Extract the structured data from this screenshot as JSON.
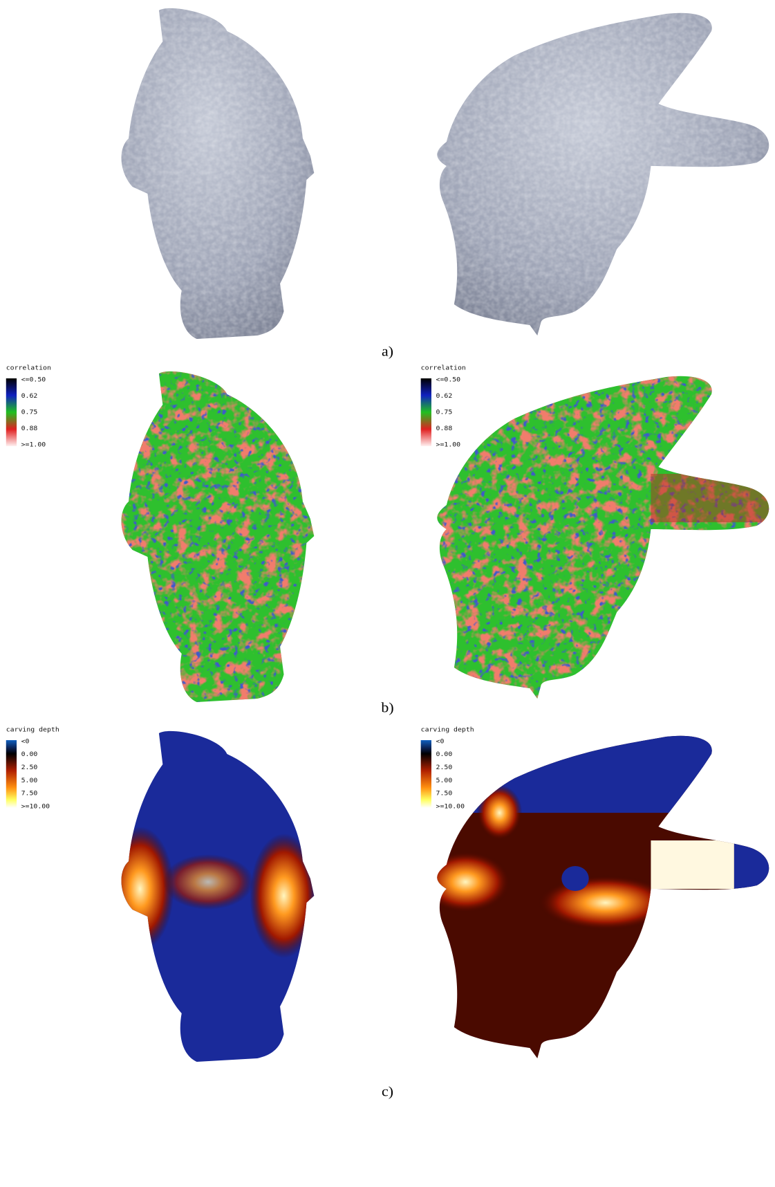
{
  "panels": [
    {
      "label": "a)"
    },
    {
      "label": "b)",
      "legends": [
        {
          "title": "correlation",
          "labels": [
            "<=0.50",
            "0.62",
            "0.75",
            "0.88",
            ">=1.00"
          ]
        },
        {
          "title": "correlation",
          "labels": [
            "<=0.50",
            "0.62",
            "0.75",
            "0.88",
            ">=1.00"
          ]
        }
      ]
    },
    {
      "label": "c)",
      "legends": [
        {
          "title": "carving depth",
          "labels": [
            "<0",
            "0.00",
            "2.50",
            "5.00",
            "7.50",
            ">=10.00"
          ]
        },
        {
          "title": "carving depth",
          "labels": [
            "<0",
            "0.00",
            "2.50",
            "5.00",
            "7.50",
            ">=10.00"
          ]
        }
      ]
    }
  ]
}
